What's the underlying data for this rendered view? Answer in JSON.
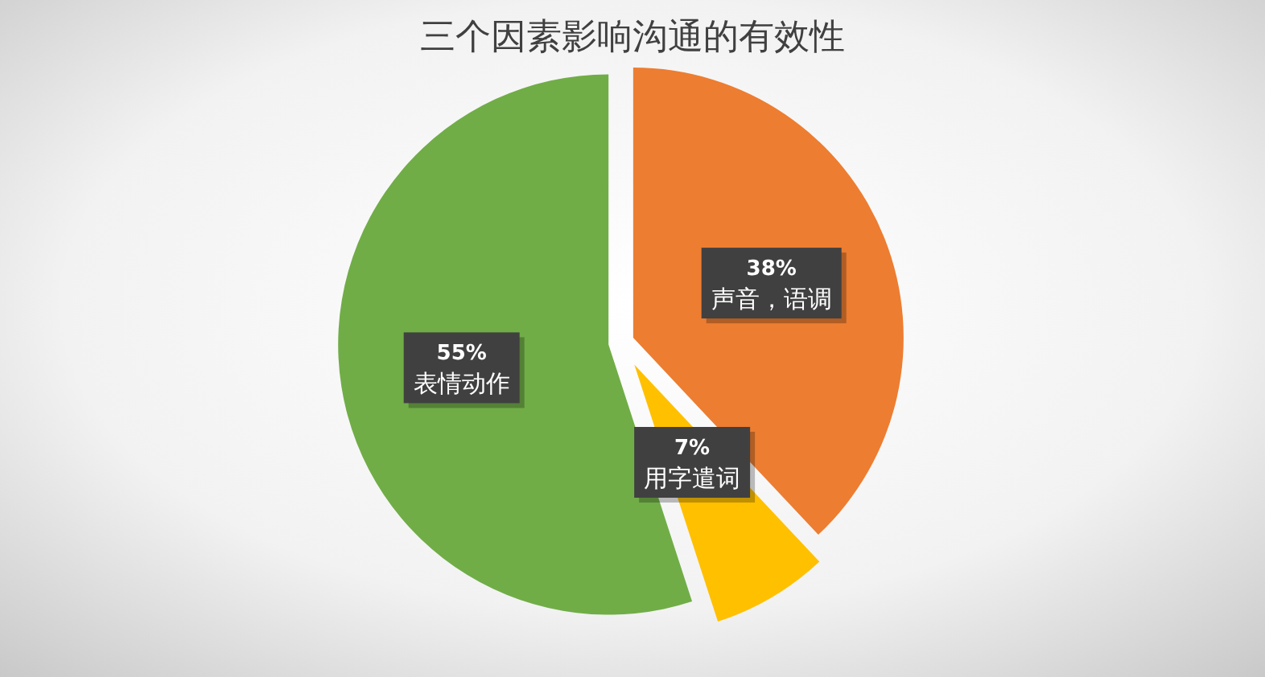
{
  "chart_data": {
    "type": "pie",
    "title": "三个因素影响沟通的有效性",
    "categories": [
      "声音，语调",
      "用字遣词",
      "表情动作"
    ],
    "values": [
      38,
      7,
      55
    ],
    "value_labels": [
      "38%",
      "7%",
      "55%"
    ],
    "colors": [
      "#ed7d31",
      "#ffc000",
      "#70ad47"
    ]
  }
}
